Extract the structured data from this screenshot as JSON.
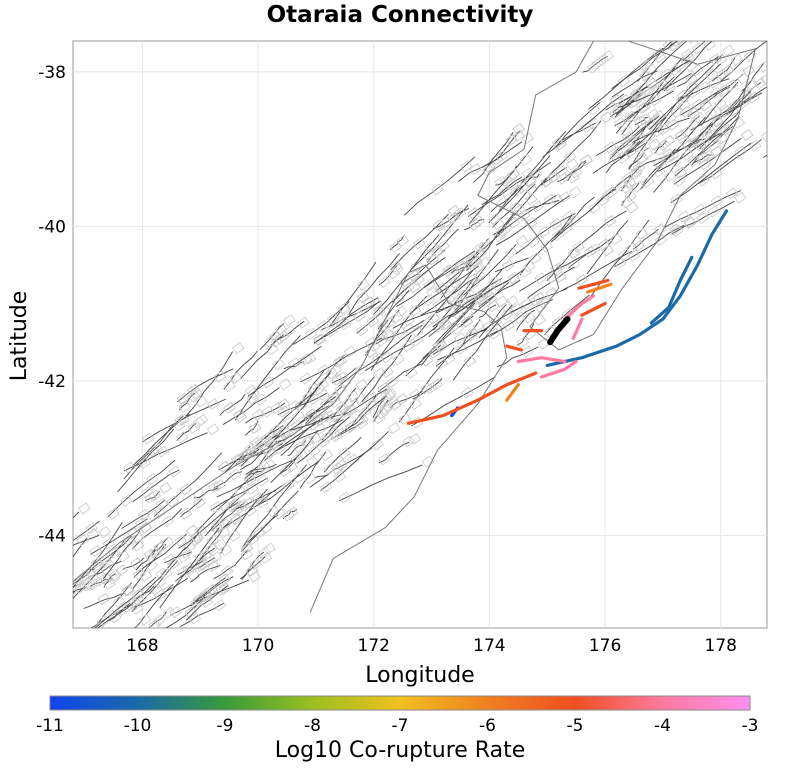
{
  "chart_data": {
    "type": "map",
    "title": "Otaraia Connectivity",
    "xlabel": "Longitude",
    "ylabel": "Latitude",
    "xlim": [
      166.8,
      178.8
    ],
    "ylim": [
      -45.2,
      -37.6
    ],
    "x_ticks": [
      168,
      170,
      172,
      174,
      176,
      178
    ],
    "y_ticks": [
      -38,
      -40,
      -42,
      -44
    ],
    "grid": true,
    "colorbar": {
      "label": "Log10 Co-rupture Rate",
      "range": [
        -11,
        -3
      ],
      "ticks": [
        "-11",
        "-10",
        "-9",
        "-8",
        "-7",
        "-6",
        "-5",
        "-4",
        "-3"
      ],
      "colors": [
        "#1144ee",
        "#1a6aa8",
        "#3a9a3a",
        "#9ac020",
        "#f0c020",
        "#f08020",
        "#f04f20",
        "#ff7aa0",
        "#ff90f0"
      ]
    },
    "highlighted_fault": {
      "name": "Otaraia",
      "color": "#000000",
      "path": [
        [
          175.05,
          -41.5
        ],
        [
          175.18,
          -41.35
        ],
        [
          175.35,
          -41.2
        ]
      ]
    },
    "connected_faults": [
      {
        "rate": -10,
        "path": [
          [
            177.0,
            -41.2
          ],
          [
            177.3,
            -40.9
          ],
          [
            177.6,
            -40.5
          ],
          [
            177.85,
            -40.1
          ],
          [
            178.1,
            -39.8
          ]
        ]
      },
      {
        "rate": -10,
        "path": [
          [
            176.8,
            -41.25
          ],
          [
            177.1,
            -41.05
          ],
          [
            177.3,
            -40.7
          ],
          [
            177.5,
            -40.4
          ]
        ]
      },
      {
        "rate": -10,
        "path": [
          [
            175.0,
            -41.8
          ],
          [
            175.6,
            -41.7
          ],
          [
            176.2,
            -41.55
          ],
          [
            176.6,
            -41.4
          ],
          [
            177.0,
            -41.2
          ]
        ]
      },
      {
        "rate": -11,
        "path": [
          [
            173.35,
            -42.45
          ],
          [
            173.45,
            -42.35
          ]
        ]
      },
      {
        "rate": -5,
        "path": [
          [
            172.6,
            -42.55
          ],
          [
            173.2,
            -42.45
          ],
          [
            173.8,
            -42.25
          ],
          [
            174.3,
            -42.05
          ],
          [
            174.8,
            -41.9
          ]
        ]
      },
      {
        "rate": -6,
        "path": [
          [
            174.3,
            -42.25
          ],
          [
            174.5,
            -42.05
          ]
        ]
      },
      {
        "rate": -5,
        "path": [
          [
            174.3,
            -41.55
          ],
          [
            174.55,
            -41.6
          ]
        ]
      },
      {
        "rate": -5,
        "path": [
          [
            174.6,
            -41.35
          ],
          [
            174.9,
            -41.35
          ]
        ]
      },
      {
        "rate": -4,
        "path": [
          [
            174.5,
            -41.75
          ],
          [
            174.9,
            -41.7
          ],
          [
            175.3,
            -41.75
          ]
        ]
      },
      {
        "rate": -4,
        "path": [
          [
            174.9,
            -41.95
          ],
          [
            175.3,
            -41.85
          ],
          [
            175.5,
            -41.75
          ]
        ]
      },
      {
        "rate": -4,
        "path": [
          [
            175.3,
            -41.2
          ],
          [
            175.6,
            -41.0
          ],
          [
            175.8,
            -40.9
          ]
        ]
      },
      {
        "rate": -5,
        "path": [
          [
            175.6,
            -41.15
          ],
          [
            176.0,
            -41.0
          ]
        ]
      },
      {
        "rate": -5,
        "path": [
          [
            175.55,
            -40.8
          ],
          [
            176.05,
            -40.7
          ]
        ]
      },
      {
        "rate": -4,
        "path": [
          [
            175.45,
            -41.45
          ],
          [
            175.6,
            -41.2
          ]
        ]
      },
      {
        "rate": -6,
        "path": [
          [
            175.7,
            -40.85
          ],
          [
            176.1,
            -40.75
          ]
        ]
      }
    ]
  }
}
